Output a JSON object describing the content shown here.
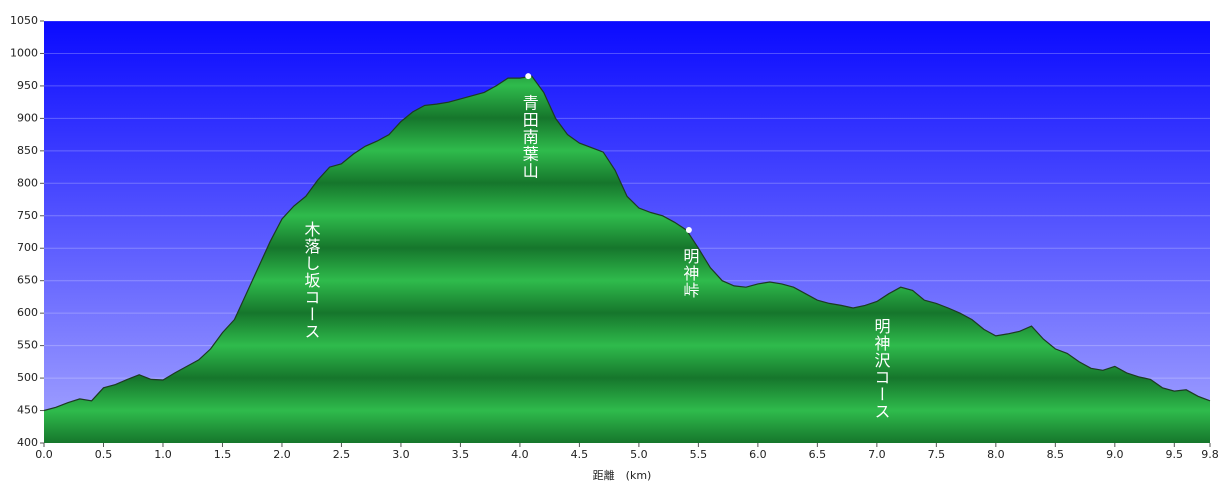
{
  "chart_data": {
    "type": "area",
    "x_label": "距離　(km)",
    "x": [
      0.0,
      0.1,
      0.2,
      0.3,
      0.4,
      0.5,
      0.6,
      0.7,
      0.8,
      0.9,
      1.0,
      1.1,
      1.2,
      1.3,
      1.4,
      1.5,
      1.6,
      1.7,
      1.8,
      1.9,
      2.0,
      2.1,
      2.2,
      2.3,
      2.4,
      2.5,
      2.6,
      2.7,
      2.8,
      2.9,
      3.0,
      3.1,
      3.2,
      3.3,
      3.4,
      3.5,
      3.6,
      3.7,
      3.8,
      3.9,
      4.0,
      4.1,
      4.2,
      4.3,
      4.4,
      4.5,
      4.6,
      4.7,
      4.8,
      4.9,
      5.0,
      5.1,
      5.2,
      5.3,
      5.4,
      5.5,
      5.6,
      5.7,
      5.8,
      5.9,
      6.0,
      6.1,
      6.2,
      6.3,
      6.4,
      6.5,
      6.6,
      6.7,
      6.8,
      6.9,
      7.0,
      7.1,
      7.2,
      7.3,
      7.4,
      7.5,
      7.6,
      7.7,
      7.8,
      7.9,
      8.0,
      8.1,
      8.2,
      8.3,
      8.4,
      8.5,
      8.6,
      8.7,
      8.8,
      8.9,
      9.0,
      9.1,
      9.2,
      9.3,
      9.4,
      9.5,
      9.6,
      9.7,
      9.8
    ],
    "values": [
      450,
      455,
      462,
      468,
      465,
      485,
      490,
      498,
      505,
      498,
      497,
      508,
      518,
      528,
      545,
      570,
      590,
      630,
      670,
      710,
      745,
      765,
      780,
      805,
      825,
      830,
      845,
      857,
      865,
      875,
      895,
      910,
      920,
      922,
      925,
      930,
      935,
      940,
      950,
      962,
      962,
      965,
      940,
      900,
      875,
      862,
      855,
      848,
      820,
      780,
      762,
      755,
      750,
      740,
      728,
      700,
      670,
      650,
      642,
      640,
      645,
      648,
      645,
      640,
      630,
      620,
      615,
      612,
      608,
      612,
      618,
      630,
      640,
      635,
      620,
      615,
      608,
      600,
      590,
      575,
      565,
      568,
      572,
      580,
      560,
      545,
      538,
      525,
      515,
      512,
      518,
      508,
      502,
      498,
      485,
      480,
      482,
      472,
      465
    ],
    "color": "#1f9a3a",
    "xlim": [
      0,
      9.8
    ],
    "xticks": [
      {
        "value": 0,
        "label": "0.0"
      },
      0.5,
      {
        "value": 1,
        "label": "1.0"
      },
      1.5,
      {
        "value": 2,
        "label": "2.0"
      },
      2.5,
      {
        "value": 3,
        "label": "3.0"
      },
      3.5,
      {
        "value": 4,
        "label": "4.0"
      },
      4.5,
      {
        "value": 5,
        "label": "5.0"
      },
      5.5,
      {
        "value": 6,
        "label": "6.0"
      },
      6.5,
      {
        "value": 7,
        "label": "7.0"
      },
      7.5,
      {
        "value": 8,
        "label": "8.0"
      },
      8.5,
      {
        "value": 9,
        "label": "9.0"
      },
      9.5,
      9.8
    ],
    "ylim": [
      400,
      1050
    ],
    "yticks": [
      400,
      450,
      500,
      550,
      600,
      650,
      700,
      750,
      800,
      850,
      900,
      950,
      1000,
      1050
    ],
    "grid": true,
    "markers": [
      {
        "x": 4.07,
        "y": 965,
        "label": "青田南葉山"
      },
      {
        "x": 5.42,
        "y": 728,
        "label": "明神峠"
      }
    ],
    "annotations": [
      "木落し坂コース",
      "明神沢コース"
    ]
  }
}
